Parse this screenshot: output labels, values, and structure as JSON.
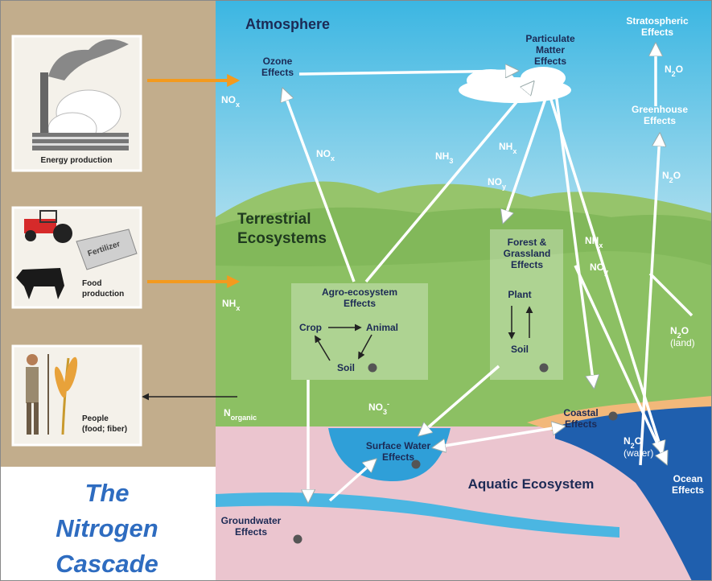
{
  "sidebar": {
    "energy_production": "Energy production",
    "fertilizer": "Fertilizer",
    "food_production": [
      "Food",
      "production"
    ],
    "people": [
      "People",
      "(food; fiber)"
    ],
    "title": [
      "The",
      "Nitrogen",
      "Cascade"
    ]
  },
  "regions": {
    "atmosphere": "Atmosphere",
    "terrestrial": [
      "Terrestrial",
      "Ecosystems"
    ],
    "aquatic": "Aquatic Ecosystem"
  },
  "effects": {
    "ozone": [
      "Ozone",
      "Effects"
    ],
    "particulate": [
      "Particulate",
      "Matter",
      "Effects"
    ],
    "stratospheric": [
      "Stratospheric",
      "Effects"
    ],
    "greenhouse": [
      "Greenhouse",
      "Effects"
    ],
    "agro": [
      "Agro-ecosystem",
      "Effects"
    ],
    "forest": [
      "Forest &",
      "Grassland",
      "Effects"
    ],
    "coastal": [
      "Coastal",
      "Effects"
    ],
    "surface_water": [
      "Surface Water",
      "Effects"
    ],
    "groundwater": [
      "Groundwater",
      "Effects"
    ],
    "ocean": [
      "Ocean",
      "Effects"
    ]
  },
  "agro_cycle": {
    "crop": "Crop",
    "animal": "Animal",
    "soil": "Soil"
  },
  "forest_cycle": {
    "plant": "Plant",
    "soil": "Soil"
  },
  "species": [
    [
      {
        "t": "NO"
      },
      {
        "sub": "x"
      }
    ],
    [
      {
        "t": "NO"
      },
      {
        "sub": "x"
      }
    ],
    [
      {
        "t": "NH"
      },
      {
        "sub": "3"
      }
    ],
    [
      {
        "t": "NH"
      },
      {
        "sub": "x"
      }
    ],
    [
      {
        "t": "NO"
      },
      {
        "sub": "y"
      }
    ],
    [
      {
        "t": "N"
      },
      {
        "sub": "2"
      },
      {
        "t": "O"
      }
    ],
    [
      {
        "t": "N"
      },
      {
        "sub": "2"
      },
      {
        "t": "O"
      }
    ],
    [
      {
        "t": "NH"
      },
      {
        "sub": "x"
      }
    ],
    [
      {
        "t": "NH"
      },
      {
        "sub": "x"
      }
    ],
    [
      {
        "t": "NO"
      },
      {
        "sub": "y"
      }
    ],
    [
      {
        "t": "N"
      },
      {
        "sub": "2"
      },
      {
        "t": "O"
      },
      {
        "line": "(land)"
      }
    ],
    [
      {
        "t": "N"
      },
      {
        "sub": "2"
      },
      {
        "t": "O"
      },
      {
        "line": "(water)"
      }
    ],
    [
      {
        "t": "N"
      },
      {
        "sub": "organic"
      }
    ],
    [
      {
        "t": "NO"
      },
      {
        "sub": "3"
      },
      {
        "sup": "-"
      }
    ]
  ]
}
